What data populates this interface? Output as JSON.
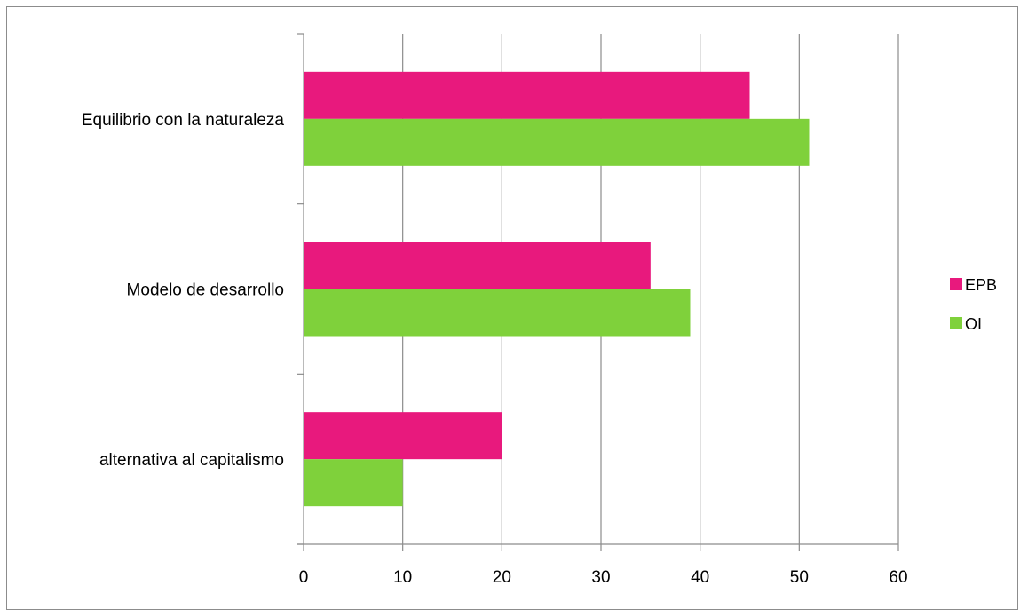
{
  "chart_data": {
    "type": "bar",
    "orientation": "horizontal",
    "title": "",
    "xlabel": "",
    "ylabel": "",
    "categories": [
      "Equilibrio con la naturaleza",
      "Modelo de desarrollo",
      "alternativa al capitalismo"
    ],
    "series": [
      {
        "name": "EPB",
        "values": [
          45,
          35,
          20
        ],
        "color": "#e8197d"
      },
      {
        "name": "OI",
        "values": [
          51,
          39,
          10
        ],
        "color": "#7fd13b"
      }
    ],
    "xlim": [
      0,
      60
    ],
    "xticks": [
      0,
      10,
      20,
      30,
      40,
      50,
      60
    ],
    "grid": "vertical",
    "legend_position": "right"
  }
}
